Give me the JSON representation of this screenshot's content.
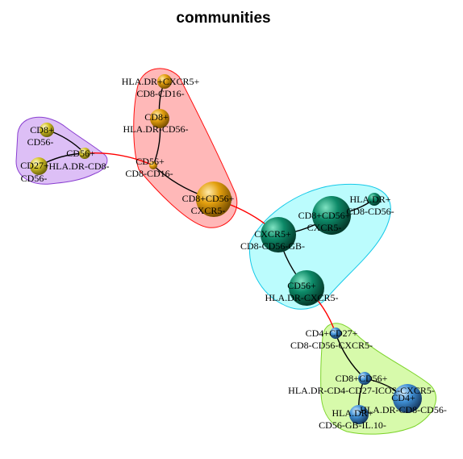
{
  "title": "communities",
  "colors": {
    "purple_fill": "#d9b8f5",
    "purple_border": "#8a3fd1",
    "red_fill": "#ffb0b0",
    "red_border": "#ff1010",
    "cyan_fill": "#b4fcfd",
    "cyan_border": "#16c9e8",
    "green_fill": "#d3f9a2",
    "green_border": "#7cd32a",
    "yellow_node": "#d4c326",
    "orange_node": "#e3a00f",
    "teal_node": "#0d8a68",
    "blue_node": "#3f8fd4",
    "intra_edge": "#000000",
    "inter_edge": "#ff0000"
  },
  "communities": [
    {
      "id": "purple",
      "fill_key": "purple_fill",
      "border_key": "purple_border"
    },
    {
      "id": "red",
      "fill_key": "red_fill",
      "border_key": "red_border"
    },
    {
      "id": "cyan",
      "fill_key": "cyan_fill",
      "border_key": "cyan_border"
    },
    {
      "id": "green",
      "fill_key": "green_fill",
      "border_key": "green_border"
    }
  ],
  "nodes": [
    {
      "id": "p1",
      "label": [
        "CD8+",
        "CD56-"
      ],
      "color_key": "yellow_node"
    },
    {
      "id": "p2",
      "label": [
        "CD56+"
      ],
      "color_key": "yellow_node"
    },
    {
      "id": "p3",
      "label": [
        "CD27+",
        "CD56-"
      ],
      "color_key": "yellow_node"
    },
    {
      "id": "p3b",
      "label": [
        "HLA.DR-CD8-"
      ],
      "color_key": "yellow_node"
    },
    {
      "id": "r1",
      "label": [
        "HLA.DR+CXCR5+",
        "CD8-CD16-"
      ],
      "color_key": "orange_node"
    },
    {
      "id": "r2",
      "label": [
        "CD8+",
        "HLA.DR-CD56-"
      ],
      "color_key": "orange_node"
    },
    {
      "id": "r3",
      "label": [
        "CD56+",
        "CD8-CD16-"
      ],
      "color_key": "orange_node"
    },
    {
      "id": "r4",
      "label": [
        "CD8+CD56+",
        "CXCR5-"
      ],
      "color_key": "orange_node"
    },
    {
      "id": "c1",
      "label": [
        "CD8+CD56+",
        "CXCR5-"
      ],
      "color_key": "teal_node"
    },
    {
      "id": "c2",
      "label": [
        "HLA.DR+",
        "CD8-CD56-"
      ],
      "color_key": "teal_node"
    },
    {
      "id": "c3",
      "label": [
        "CXCR5+",
        "CD8-CD56-GB-"
      ],
      "color_key": "teal_node"
    },
    {
      "id": "c4",
      "label": [
        "CD56+",
        "HLA.DR-CXCR5-"
      ],
      "color_key": "teal_node"
    },
    {
      "id": "g1",
      "label": [
        "CD4+CD27+",
        "CD8-CD56-CXCR5-"
      ],
      "color_key": "blue_node"
    },
    {
      "id": "g2",
      "label": [
        "CD8+CD56+",
        "HLA.DR-CD4-CD27-ICOS-CXCR5-"
      ],
      "color_key": "blue_node"
    },
    {
      "id": "g3",
      "label": [
        "CD4+",
        "HLA.DR-CD8-CD56-"
      ],
      "color_key": "blue_node"
    },
    {
      "id": "g4",
      "label": [
        "HLA.DR+",
        "CD56-GB-IL.10-"
      ],
      "color_key": "blue_node"
    }
  ],
  "edges": [
    {
      "from": "p1",
      "to": "p2",
      "kind": "intra"
    },
    {
      "from": "p2",
      "to": "p3",
      "kind": "intra"
    },
    {
      "from": "p2",
      "to": "r3",
      "kind": "inter"
    },
    {
      "from": "r1",
      "to": "r2",
      "kind": "intra"
    },
    {
      "from": "r2",
      "to": "r3",
      "kind": "intra"
    },
    {
      "from": "r3",
      "to": "r4",
      "kind": "intra"
    },
    {
      "from": "r4",
      "to": "c3",
      "kind": "inter"
    },
    {
      "from": "c1",
      "to": "c2",
      "kind": "intra"
    },
    {
      "from": "c1",
      "to": "c3",
      "kind": "intra"
    },
    {
      "from": "c3",
      "to": "c4",
      "kind": "intra"
    },
    {
      "from": "c4",
      "to": "g1",
      "kind": "inter"
    },
    {
      "from": "g1",
      "to": "g2",
      "kind": "intra"
    },
    {
      "from": "g2",
      "to": "g3",
      "kind": "intra"
    },
    {
      "from": "g2",
      "to": "g4",
      "kind": "intra"
    }
  ]
}
